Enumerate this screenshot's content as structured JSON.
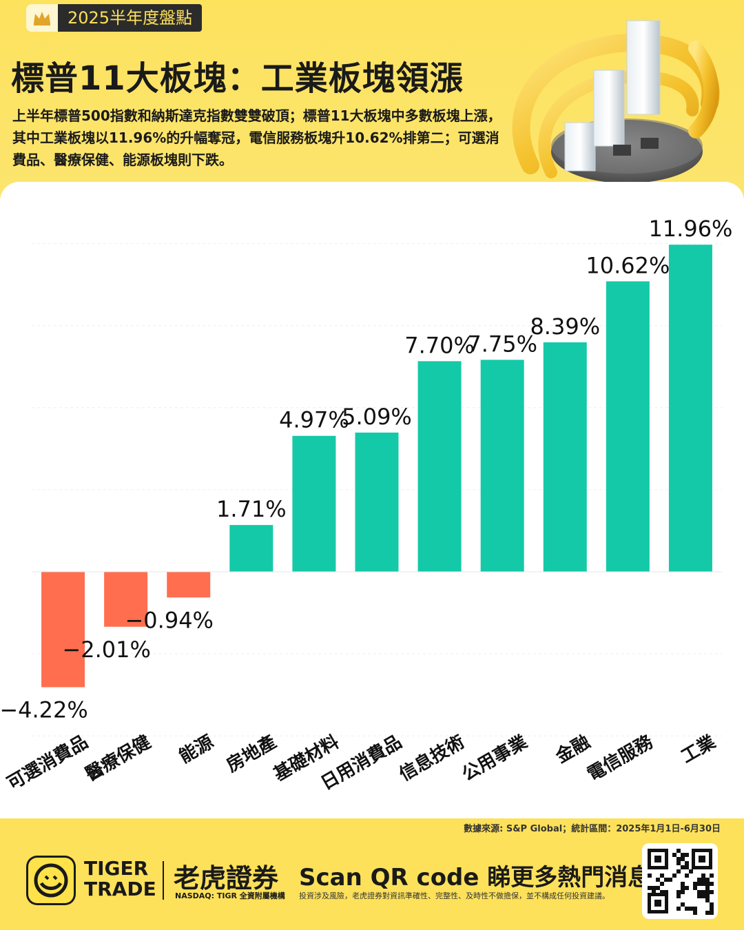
{
  "badge": {
    "label": "2025半年度盤點"
  },
  "header": {
    "title": "標普11大板塊：工業板塊領漲",
    "subtitle": "上半年標普500指數和納斯達克指數雙雙破頂；標普11大板塊中多數板塊上漲，其中工業板塊以11.96%的升幅奪冠，電信服務板塊升10.62%排第二；可選消費品、醫療保健、能源板塊則下跌。"
  },
  "chart_data": {
    "type": "bar",
    "categories": [
      "可選消費品",
      "醫療保健",
      "能源",
      "房地產",
      "基礎材料",
      "日用消費品",
      "信息技術",
      "公用事業",
      "金融",
      "電信服務",
      "工業"
    ],
    "values": [
      -4.22,
      -2.01,
      -0.94,
      1.71,
      4.97,
      5.09,
      7.7,
      7.75,
      8.39,
      10.62,
      11.96
    ],
    "labels": [
      "−4.22%",
      "−2.01%",
      "−0.94%",
      "1.71%",
      "4.97%",
      "5.09%",
      "7.70%",
      "7.75%",
      "8.39%",
      "10.62%",
      "11.96%"
    ],
    "ylim": [
      -6,
      12
    ],
    "grid": true,
    "colors": {
      "positive": "#14C9A8",
      "negative": "#FF6E4F"
    }
  },
  "footer": {
    "source": "數據來源: S&P Global；統計區間：2025年1月1日-6月30日",
    "brand_en_1": "TIGER",
    "brand_en_2": "TRADE",
    "brand_cn": "老虎證券",
    "brand_sub": "NASDAQ: TIGR 全資附屬機構",
    "scan": "Scan QR code 睇更多熱門消息",
    "disclaimer": "投資涉及風險，老虎證券對資訊準確性、完整性、及時性不做擔保，並不構成任何投資建議。"
  }
}
